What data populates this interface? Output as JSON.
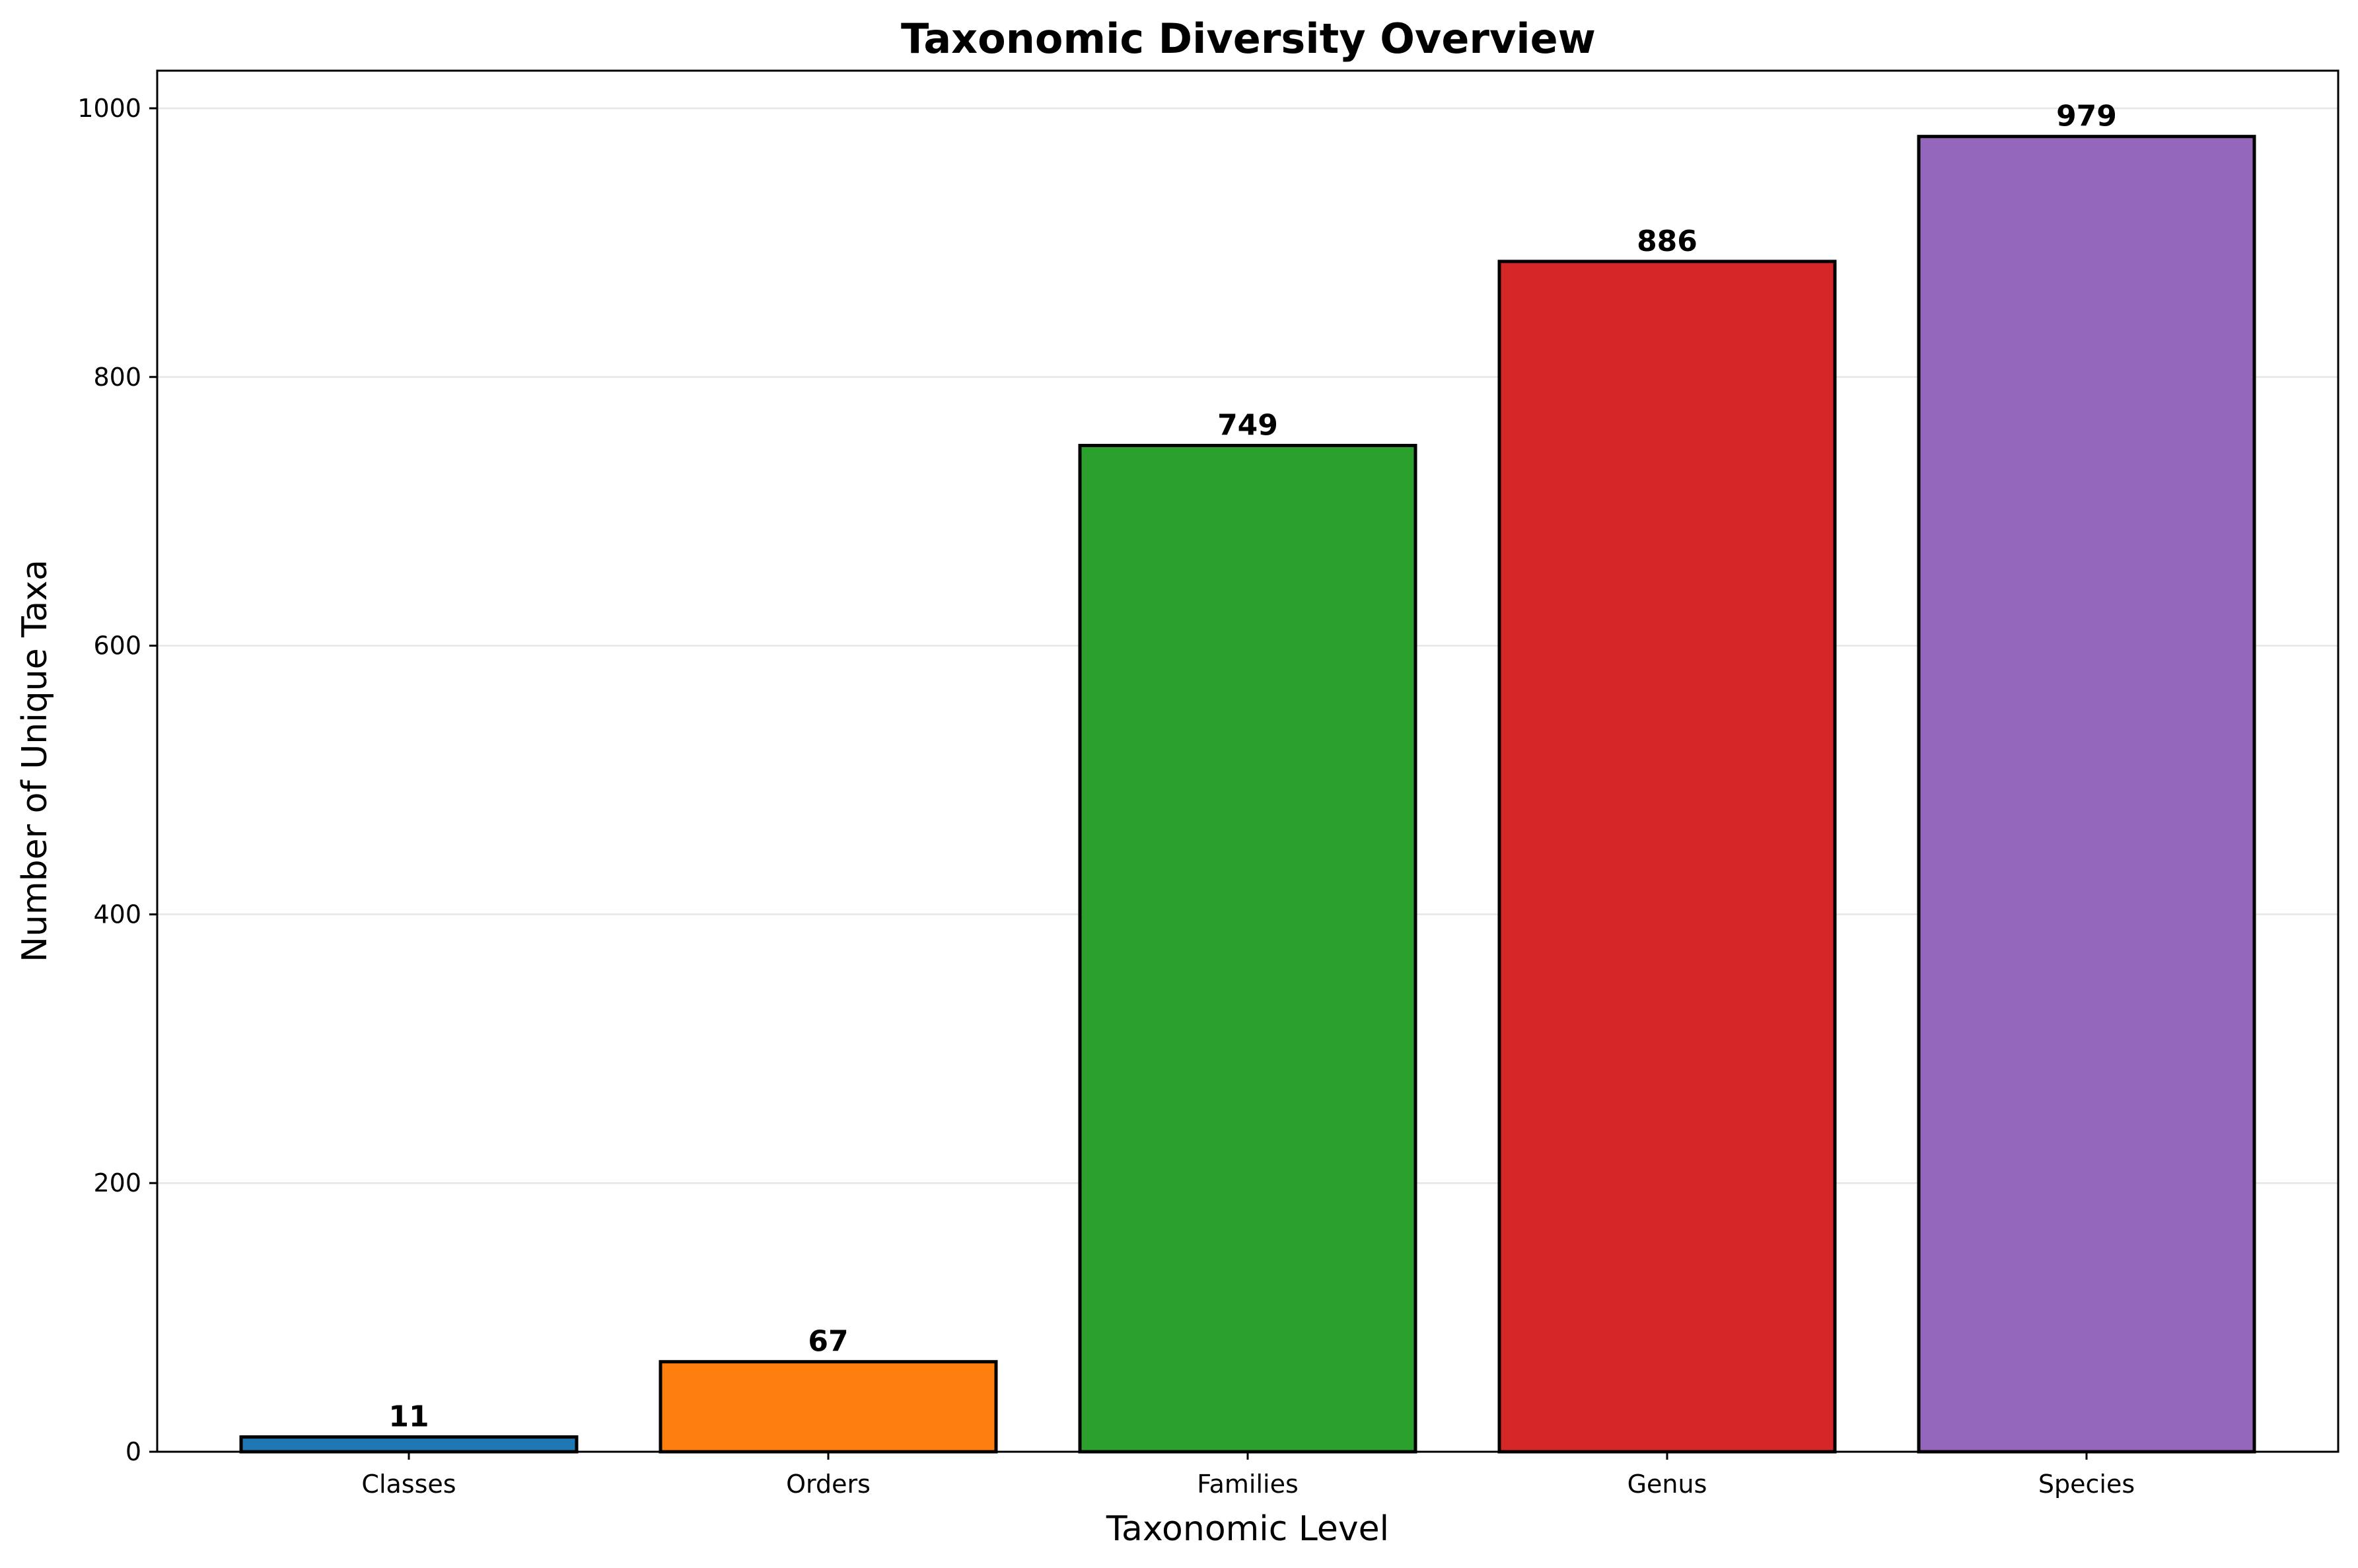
{
  "chart_data": {
    "type": "bar",
    "title": "Taxonomic Diversity Overview",
    "xlabel": "Taxonomic Level",
    "ylabel": "Number of Unique Taxa",
    "categories": [
      "Classes",
      "Orders",
      "Families",
      "Genus",
      "Species"
    ],
    "values": [
      11,
      67,
      749,
      886,
      979
    ],
    "colors": [
      "#1f77b4",
      "#ff7f0e",
      "#2ca02c",
      "#d62728",
      "#9467bd"
    ],
    "edge_color": "#000000",
    "ylim": [
      0,
      1028
    ],
    "yticks": [
      0,
      200,
      400,
      600,
      800,
      1000
    ],
    "grid": "y-axis only",
    "data_labels": true,
    "legend": "none"
  }
}
